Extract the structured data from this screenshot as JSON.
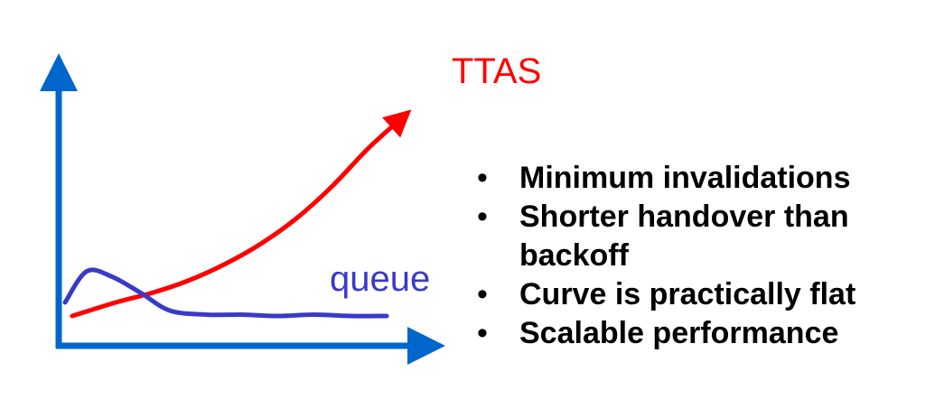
{
  "colors": {
    "axis": "#0066cc",
    "ttas": "#ff0000",
    "queue": "#3a3ac8",
    "text": "#0000ff"
  },
  "chart_data": {
    "type": "line",
    "title": "",
    "xlabel": "",
    "ylabel": "",
    "xlim": [
      0,
      10
    ],
    "ylim": [
      0,
      10
    ],
    "grid": false,
    "legend": "none",
    "series": [
      {
        "name": "TTAS",
        "color": "#ff0000",
        "x": [
          0.3,
          1.5,
          2.5,
          3.5,
          4.5,
          5.5,
          6.5,
          7.5,
          8.5,
          9.5
        ],
        "y": [
          1.0,
          1.5,
          1.85,
          2.3,
          2.9,
          3.65,
          4.6,
          5.8,
          7.2,
          8.4
        ]
      },
      {
        "name": "queue",
        "color": "#3a3ac8",
        "x": [
          0.1,
          0.7,
          1.4,
          2.2,
          3.0,
          4.0,
          5.0,
          6.0,
          7.0,
          8.0,
          9.0
        ],
        "y": [
          1.5,
          2.65,
          2.45,
          1.85,
          1.2,
          1.05,
          1.05,
          1.0,
          1.05,
          1.0,
          1.0
        ]
      }
    ]
  },
  "bullets": [
    "Minimum invalidations",
    "Shorter handover than backoff",
    "Curve is practically flat",
    "Scalable performance"
  ]
}
